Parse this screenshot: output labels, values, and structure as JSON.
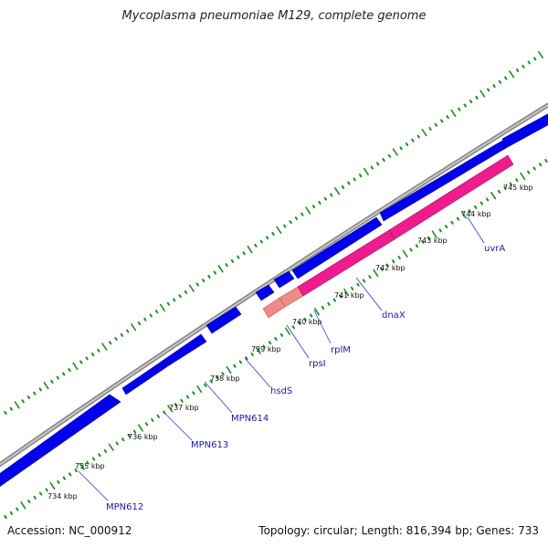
{
  "title": "Mycoplasma pneumoniae M129, complete genome",
  "footer": {
    "accession": "Accession: NC_000912",
    "summary": "Topology: circular; Length: 816,394 bp; Genes: 733"
  },
  "colors": {
    "backbone": "#8c8c8c",
    "forward_gene": "#0000ee",
    "highlight_gene_main": "#ee1c8c",
    "highlight_gene_light": "#f08a86",
    "tick": "#228b22",
    "label_line": "#3333cc",
    "label_text": "#1a1aa0"
  },
  "scale": {
    "unit": "kbp",
    "tick_labels": [
      "734 kbp",
      "735 kbp",
      "736 kbp",
      "737 kbp",
      "738 kbp",
      "739 kbp",
      "740 kbp",
      "741 kbp",
      "742 kbp",
      "743 kbp",
      "744 kbp",
      "745 kbp"
    ]
  },
  "gene_labels": [
    "MPN612",
    "MPN613",
    "MPN614",
    "hsdS",
    "rpsI",
    "rplM",
    "dnaX",
    "uvrA"
  ]
}
